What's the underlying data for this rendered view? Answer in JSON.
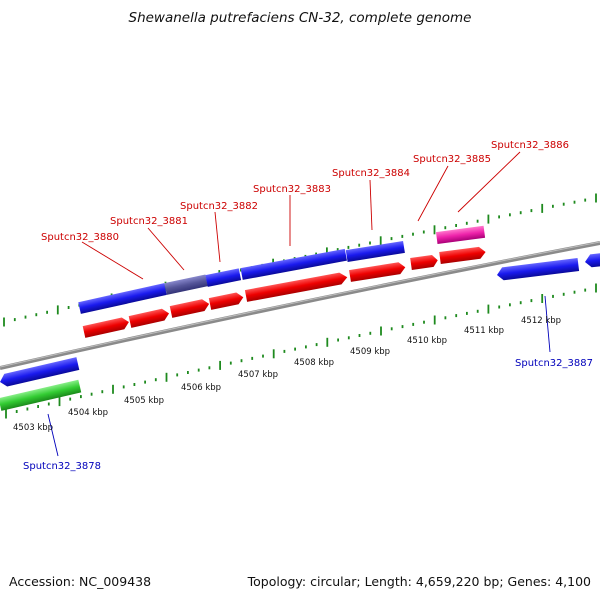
{
  "title": "Shewanella putrefaciens CN-32, complete genome",
  "footer": {
    "accession": "Accession: NC_009438",
    "topology": "Topology: circular; Length: 4,659,220 bp; Genes: 4,100"
  },
  "colors": {
    "backbone": "#8c8c8c",
    "tick": "#1e8a1e",
    "forward_cds": "#ee0000",
    "forward_gene": "#2222ee",
    "highlight_gene": "#ee22aa",
    "reverse_cds": "#33cc33",
    "label_forward": "#cc0000",
    "label_reverse": "#0000bb"
  },
  "scale": {
    "unit": "kbp",
    "labels": [
      "4503 kbp",
      "4504 kbp",
      "4505 kbp",
      "4506 kbp",
      "4507 kbp",
      "4508 kbp",
      "4509 kbp",
      "4510 kbp",
      "4511 kbp",
      "4512 kbp"
    ]
  },
  "gene_labels": {
    "forward": [
      "Sputcn32_3880",
      "Sputcn32_3881",
      "Sputcn32_3882",
      "Sputcn32_3883",
      "Sputcn32_3884",
      "Sputcn32_3885",
      "Sputcn32_3886"
    ],
    "reverse": [
      "Sputcn32_3878",
      "Sputcn32_3887"
    ]
  }
}
